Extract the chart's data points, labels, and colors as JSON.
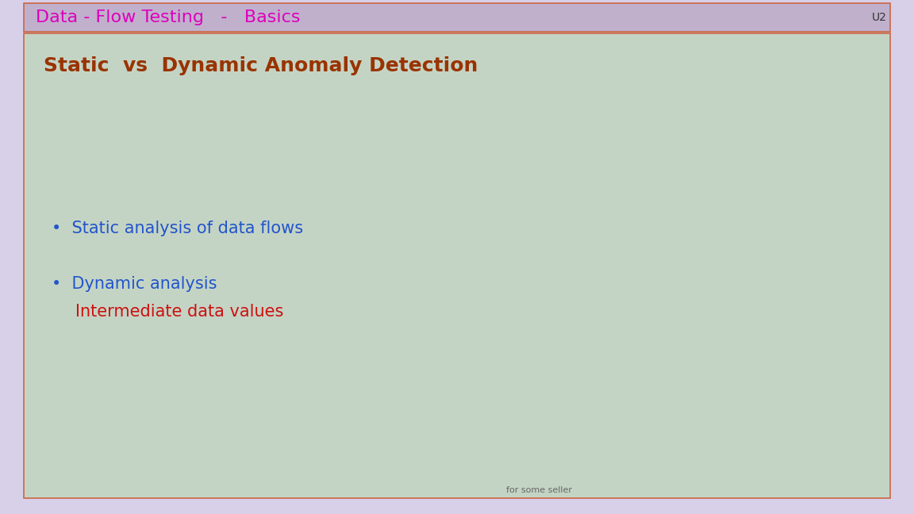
{
  "title_text": "Data - Flow Testing   -   Basics",
  "title_color": "#DD00BB",
  "title_bg_color": "#C0B0CC",
  "title_fontsize": 16,
  "u2_text": "U2",
  "u2_color": "#333333",
  "u2_fontsize": 10,
  "content_bg_color": "#C4D4C4",
  "content_border_color": "#CC6644",
  "slide_bg_color": "#D8D0E8",
  "subtitle_text": "Static  vs  Dynamic Anomaly Detection",
  "subtitle_color": "#993300",
  "subtitle_fontsize": 18,
  "bullet1_text": "•  Static analysis of data flows",
  "bullet1_color": "#2255CC",
  "bullet1_fontsize": 15,
  "bullet2_line1": "•  Dynamic analysis",
  "bullet2_line2": "      Intermediate data values",
  "bullet2_line1_color": "#2255CC",
  "bullet2_line2_color": "#CC1111",
  "bullet2_fontsize": 15,
  "footer_text": "for some seller",
  "footer_color": "#666666",
  "footer_fontsize": 8
}
